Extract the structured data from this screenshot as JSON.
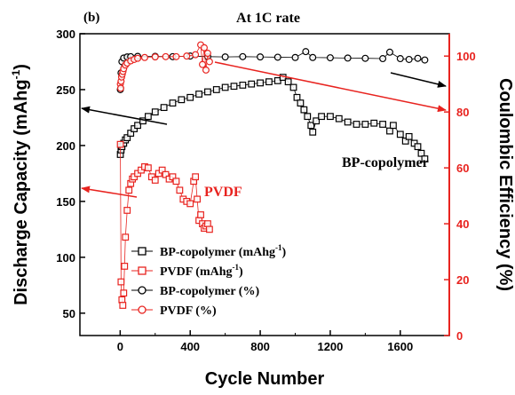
{
  "panel_label": "(b)",
  "chart_data": {
    "type": "scatter",
    "title": "At 1C rate",
    "xlabel": "Cycle Number",
    "ylabel_left": "Discharge Capacity (mAhg",
    "ylabel_left_sup": "-1",
    "ylabel_left_tail": ")",
    "ylabel_right": "Coulombic Efficiency (%)",
    "xlim": [
      -230,
      1880
    ],
    "ylim_left": [
      30,
      300
    ],
    "ylim_right": [
      0,
      108
    ],
    "x_ticks": [
      0,
      400,
      800,
      1200,
      1600
    ],
    "x_tick_labels": [
      "0",
      "400",
      "800",
      "1200",
      "1600"
    ],
    "y_left_ticks": [
      50,
      100,
      150,
      200,
      250,
      300
    ],
    "y_left_tick_labels": [
      "50",
      "100",
      "150",
      "200",
      "250",
      "300"
    ],
    "y_right_ticks": [
      0,
      20,
      40,
      60,
      80,
      100
    ],
    "y_right_tick_labels": [
      "0",
      "20",
      "40",
      "60",
      "80",
      "100"
    ],
    "colors": {
      "bp": "#000000",
      "pvdf": "#e8231f"
    },
    "annotations": {
      "bp_label": "BP-copolymer",
      "pvdf_label": "PVDF"
    },
    "legend": {
      "placement": "bottom-left",
      "entries": [
        {
          "text": "BP-copolymer (mAhg",
          "sup": "-1",
          "tail": ")",
          "marker": "square",
          "color": "#000000"
        },
        {
          "text": "PVDF (mAhg",
          "sup": "-1",
          "tail": ")",
          "marker": "square",
          "color": "#e8231f"
        },
        {
          "text": "BP-copolymer (%)",
          "sup": "",
          "tail": "",
          "marker": "circle",
          "color": "#000000"
        },
        {
          "text": "PVDF (%)",
          "sup": "",
          "tail": "",
          "marker": "circle",
          "color": "#e8231f"
        }
      ]
    },
    "series": [
      {
        "name": "BP-copolymer (mAhg-1)",
        "axis": "left",
        "marker": "square",
        "color": "#000000",
        "x": [
          1,
          5,
          10,
          20,
          30,
          40,
          60,
          80,
          100,
          130,
          160,
          200,
          250,
          300,
          350,
          400,
          450,
          500,
          550,
          600,
          650,
          700,
          750,
          800,
          850,
          900,
          930,
          960,
          990,
          1010,
          1030,
          1050,
          1070,
          1090,
          1100,
          1120,
          1150,
          1200,
          1250,
          1300,
          1350,
          1400,
          1450,
          1500,
          1540,
          1560,
          1600,
          1630,
          1650,
          1680,
          1700,
          1720,
          1740
        ],
        "y": [
          192,
          196,
          199,
          202,
          205,
          207,
          211,
          215,
          218,
          222,
          226,
          230,
          234,
          238,
          241,
          243,
          246,
          248,
          250,
          252,
          253,
          254,
          255,
          256,
          257,
          258,
          261,
          257,
          252,
          243,
          238,
          232,
          226,
          218,
          212,
          222,
          226,
          226,
          224,
          221,
          219,
          219,
          220,
          219,
          213,
          218,
          210,
          204,
          208,
          202,
          199,
          193,
          188
        ]
      },
      {
        "name": "PVDF (mAhg-1)",
        "axis": "left",
        "marker": "square",
        "color": "#e8231f",
        "x": [
          1,
          5,
          10,
          15,
          20,
          25,
          30,
          40,
          50,
          60,
          70,
          80,
          100,
          120,
          140,
          160,
          180,
          200,
          220,
          240,
          260,
          280,
          300,
          320,
          340,
          360,
          380,
          400,
          420,
          430,
          440,
          450,
          460,
          470,
          480,
          490,
          500,
          510
        ],
        "y": [
          201,
          78,
          62,
          57,
          68,
          92,
          118,
          142,
          160,
          166,
          170,
          172,
          175,
          178,
          181,
          180,
          172,
          169,
          175,
          178,
          174,
          170,
          172,
          168,
          160,
          152,
          150,
          148,
          168,
          172,
          152,
          133,
          138,
          130,
          126,
          128,
          130,
          125
        ]
      },
      {
        "name": "BP-copolymer (%)",
        "axis": "right",
        "marker": "circle",
        "color": "#000000",
        "x": [
          1,
          5,
          10,
          20,
          40,
          60,
          100,
          200,
          300,
          400,
          500,
          600,
          700,
          800,
          900,
          1000,
          1060,
          1100,
          1200,
          1300,
          1400,
          1500,
          1540,
          1600,
          1650,
          1700,
          1740
        ],
        "y": [
          88,
          94,
          98,
          99.3,
          99.7,
          99.8,
          99.9,
          99.9,
          99.8,
          100,
          99.8,
          99.7,
          99.8,
          99.7,
          99.6,
          99.5,
          101.6,
          99.5,
          99.4,
          99.3,
          99.2,
          99.1,
          101.4,
          99.1,
          98.8,
          99.2,
          98.6
        ]
      },
      {
        "name": "PVDF (%)",
        "axis": "right",
        "marker": "circle",
        "color": "#e8231f",
        "x": [
          1,
          3,
          5,
          8,
          12,
          16,
          20,
          30,
          40,
          60,
          80,
          100,
          140,
          200,
          260,
          320,
          380,
          430,
          460,
          470,
          480,
          490,
          500,
          510
        ],
        "y": [
          90,
          88.5,
          91,
          92.5,
          93.5,
          94.5,
          95.5,
          96.8,
          97.5,
          98.3,
          98.8,
          99.2,
          99.5,
          99.7,
          99.8,
          99.8,
          100,
          100.5,
          104,
          97,
          103,
          95,
          101,
          98
        ]
      }
    ]
  }
}
